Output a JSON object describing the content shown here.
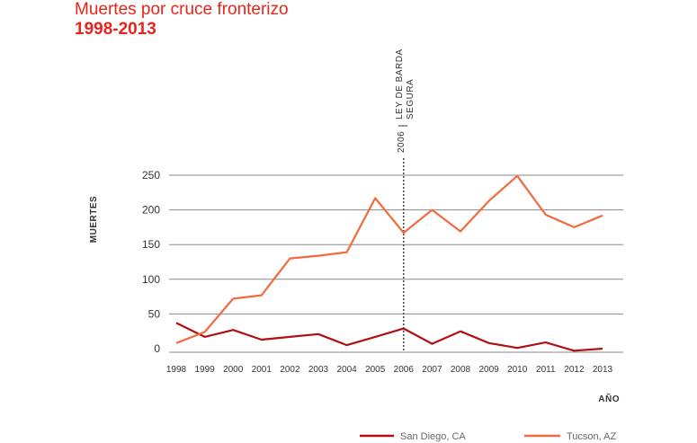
{
  "header": {
    "title": "Muertes por cruce fronterizo",
    "subtitle": "1998-2013"
  },
  "chart_data": {
    "type": "line",
    "x": [
      1998,
      1999,
      2000,
      2001,
      2002,
      2003,
      2004,
      2005,
      2006,
      2007,
      2008,
      2009,
      2010,
      2011,
      2012,
      2013
    ],
    "xlabel": "AÑO",
    "ylabel": "MUERTES",
    "ylim": [
      0,
      250
    ],
    "yticks": [
      0,
      50,
      100,
      150,
      200,
      250
    ],
    "grid": true,
    "series": [
      {
        "name": "San Diego, CA",
        "color": "#b30e12",
        "values": [
          37,
          17,
          27,
          13,
          17,
          21,
          5,
          17,
          29,
          7,
          25,
          8,
          1,
          9,
          -3,
          0
        ]
      },
      {
        "name": "Tucson, AZ",
        "color": "#f26a3d",
        "values": [
          8,
          24,
          72,
          77,
          130,
          134,
          139,
          217,
          167,
          200,
          169,
          213,
          249,
          193,
          175,
          192
        ]
      }
    ],
    "annotation": {
      "x": 2006,
      "year_label": "2006",
      "lines": [
        "LEY DE BARDA",
        "SEGURA"
      ]
    },
    "legend_placement": "bottom"
  }
}
